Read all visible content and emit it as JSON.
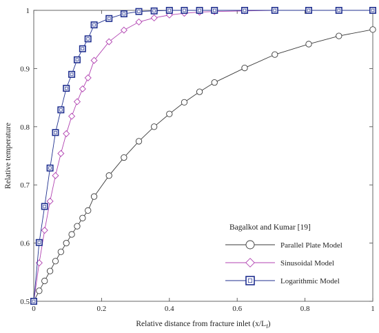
{
  "chart_data": {
    "type": "line",
    "xlabel": "Relative distance from fracture inlet (x/L",
    "xlabel_sub": "f",
    "xlabel_close": ")",
    "ylabel": "Relative temperature",
    "xlim": [
      0,
      1
    ],
    "ylim": [
      0.5,
      1
    ],
    "x_ticks": [
      "0",
      "0.2",
      "0.4",
      "0.6",
      "0.8",
      "1"
    ],
    "y_ticks": [
      "0.5",
      "0.6",
      "0.7",
      "0.8",
      "0.9",
      "1"
    ],
    "grid": false,
    "legend": {
      "position": "bottom-right",
      "title": "Bagalkot and Kumar [19]"
    },
    "series": [
      {
        "name": "Parallel Plate Model",
        "color": "#3a3a3a",
        "marker": "circle",
        "points": [
          [
            0,
            0.5
          ],
          [
            0.016,
            0.518
          ],
          [
            0.032,
            0.535
          ],
          [
            0.048,
            0.552
          ],
          [
            0.064,
            0.569
          ],
          [
            0.08,
            0.585
          ],
          [
            0.096,
            0.6
          ],
          [
            0.112,
            0.615
          ],
          [
            0.128,
            0.629
          ],
          [
            0.144,
            0.643
          ],
          [
            0.16,
            0.656
          ],
          [
            0.178,
            0.68
          ],
          [
            0.222,
            0.716
          ],
          [
            0.266,
            0.747
          ],
          [
            0.31,
            0.775
          ],
          [
            0.355,
            0.8
          ],
          [
            0.4,
            0.822
          ],
          [
            0.444,
            0.842
          ],
          [
            0.489,
            0.86
          ],
          [
            0.533,
            0.876
          ],
          [
            0.622,
            0.901
          ],
          [
            0.711,
            0.924
          ],
          [
            0.811,
            0.942
          ],
          [
            0.9,
            0.956
          ],
          [
            1.0,
            0.967
          ]
        ]
      },
      {
        "name": "Sinusoidal Model",
        "color": "#b040b0",
        "marker": "diamond",
        "points": [
          [
            0,
            0.5
          ],
          [
            0.016,
            0.566
          ],
          [
            0.032,
            0.622
          ],
          [
            0.048,
            0.672
          ],
          [
            0.064,
            0.716
          ],
          [
            0.08,
            0.754
          ],
          [
            0.096,
            0.788
          ],
          [
            0.112,
            0.818
          ],
          [
            0.128,
            0.843
          ],
          [
            0.144,
            0.865
          ],
          [
            0.16,
            0.884
          ],
          [
            0.178,
            0.914
          ],
          [
            0.222,
            0.946
          ],
          [
            0.266,
            0.966
          ],
          [
            0.31,
            0.98
          ],
          [
            0.355,
            0.987
          ],
          [
            0.4,
            0.992
          ],
          [
            0.444,
            0.995
          ],
          [
            0.489,
            0.997
          ],
          [
            0.533,
            0.998
          ],
          [
            0.622,
            0.999
          ],
          [
            0.711,
            1.0
          ],
          [
            0.811,
            1.0
          ],
          [
            0.9,
            1.0
          ],
          [
            1.0,
            1.0
          ]
        ]
      },
      {
        "name": "Logarithmic Model",
        "color": "#1f2f8f",
        "marker": "square",
        "points": [
          [
            0,
            0.5
          ],
          [
            0.016,
            0.601
          ],
          [
            0.032,
            0.663
          ],
          [
            0.048,
            0.729
          ],
          [
            0.064,
            0.79
          ],
          [
            0.08,
            0.829
          ],
          [
            0.096,
            0.866
          ],
          [
            0.112,
            0.89
          ],
          [
            0.128,
            0.915
          ],
          [
            0.144,
            0.934
          ],
          [
            0.16,
            0.951
          ],
          [
            0.178,
            0.975
          ],
          [
            0.222,
            0.986
          ],
          [
            0.266,
            0.994
          ],
          [
            0.31,
            0.998
          ],
          [
            0.355,
            0.999
          ],
          [
            0.4,
            1.0
          ],
          [
            0.444,
            1.0
          ],
          [
            0.489,
            1.0
          ],
          [
            0.533,
            1.0
          ],
          [
            0.622,
            1.0
          ],
          [
            0.711,
            1.0
          ],
          [
            0.811,
            1.0
          ],
          [
            0.9,
            1.0
          ],
          [
            1.0,
            1.0
          ]
        ]
      }
    ]
  }
}
